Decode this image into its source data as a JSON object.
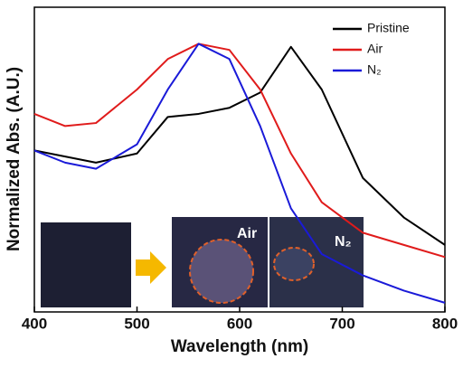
{
  "chart_data": {
    "type": "line",
    "x_label": "Wavelength (nm)",
    "y_label": "Normalized Abs. (A.U.)",
    "x": [
      400,
      430,
      460,
      500,
      530,
      560,
      590,
      620,
      650,
      680,
      720,
      760,
      800
    ],
    "series": [
      {
        "name": "Pristine",
        "color": "#000000",
        "values": [
          0.53,
          0.51,
          0.49,
          0.52,
          0.64,
          0.65,
          0.67,
          0.72,
          0.87,
          0.73,
          0.44,
          0.31,
          0.22
        ]
      },
      {
        "name": "Air",
        "color": "#e01b1b",
        "values": [
          0.65,
          0.61,
          0.62,
          0.73,
          0.83,
          0.88,
          0.86,
          0.73,
          0.52,
          0.36,
          0.26,
          0.22,
          0.18
        ]
      },
      {
        "name": "N₂",
        "color": "#1a1ad8",
        "values": [
          0.53,
          0.49,
          0.47,
          0.55,
          0.73,
          0.88,
          0.83,
          0.61,
          0.34,
          0.19,
          0.12,
          0.07,
          0.03
        ]
      }
    ],
    "xlim": [
      400,
      800
    ],
    "xticks": [
      400,
      500,
      600,
      700,
      800
    ],
    "ylim": [
      0,
      1
    ],
    "legend": "upper right",
    "inset_labels": [
      "Air",
      "N₂"
    ]
  }
}
